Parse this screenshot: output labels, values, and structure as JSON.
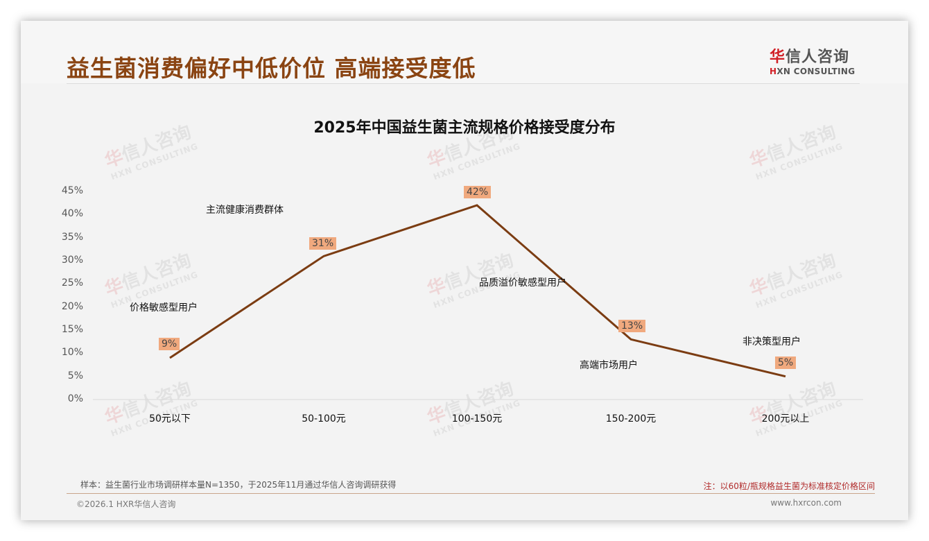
{
  "header": {
    "title": "益生菌消费偏好中低价位 高端接受度低",
    "logo_cn_red": "华",
    "logo_cn_rest": "信人咨询",
    "logo_en_red": "H",
    "logo_en_rest": "XN CONSULTING"
  },
  "watermark": {
    "cn_red": "华",
    "cn_rest": "信人咨询",
    "en": "HXN CONSULTING"
  },
  "chart_data": {
    "type": "line",
    "title": "2025年中国益生菌主流规格价格接受度分布",
    "categories": [
      "50元以下",
      "50-100元",
      "100-150元",
      "150-200元",
      "200元以上"
    ],
    "values": [
      9,
      31,
      42,
      13,
      5
    ],
    "value_labels": [
      "9%",
      "31%",
      "42%",
      "13%",
      "5%"
    ],
    "yticks": [
      "0%",
      "5%",
      "10%",
      "15%",
      "20%",
      "25%",
      "30%",
      "35%",
      "40%",
      "45%"
    ],
    "ylim": [
      0,
      45
    ],
    "xlabel": "",
    "ylabel": "",
    "grid": false,
    "legend": "none",
    "line_color": "#7b3c12",
    "label_bg_color": "#f0a97e",
    "annotations": [
      "价格敏感型用户",
      "主流健康消费群体",
      "品质溢价敏感型用户",
      "高端市场用户",
      "非决策型用户"
    ]
  },
  "footer": {
    "sample_note": "样本：益生菌行业市场调研样本量N=1350，于2025年11月通过华信人咨询调研获得",
    "price_note": "注：以60粒/瓶规格益生菌为标准核定价格区间",
    "copyright": "©2026.1 HXR华信人咨询",
    "website": "www.hxrcon.com"
  }
}
